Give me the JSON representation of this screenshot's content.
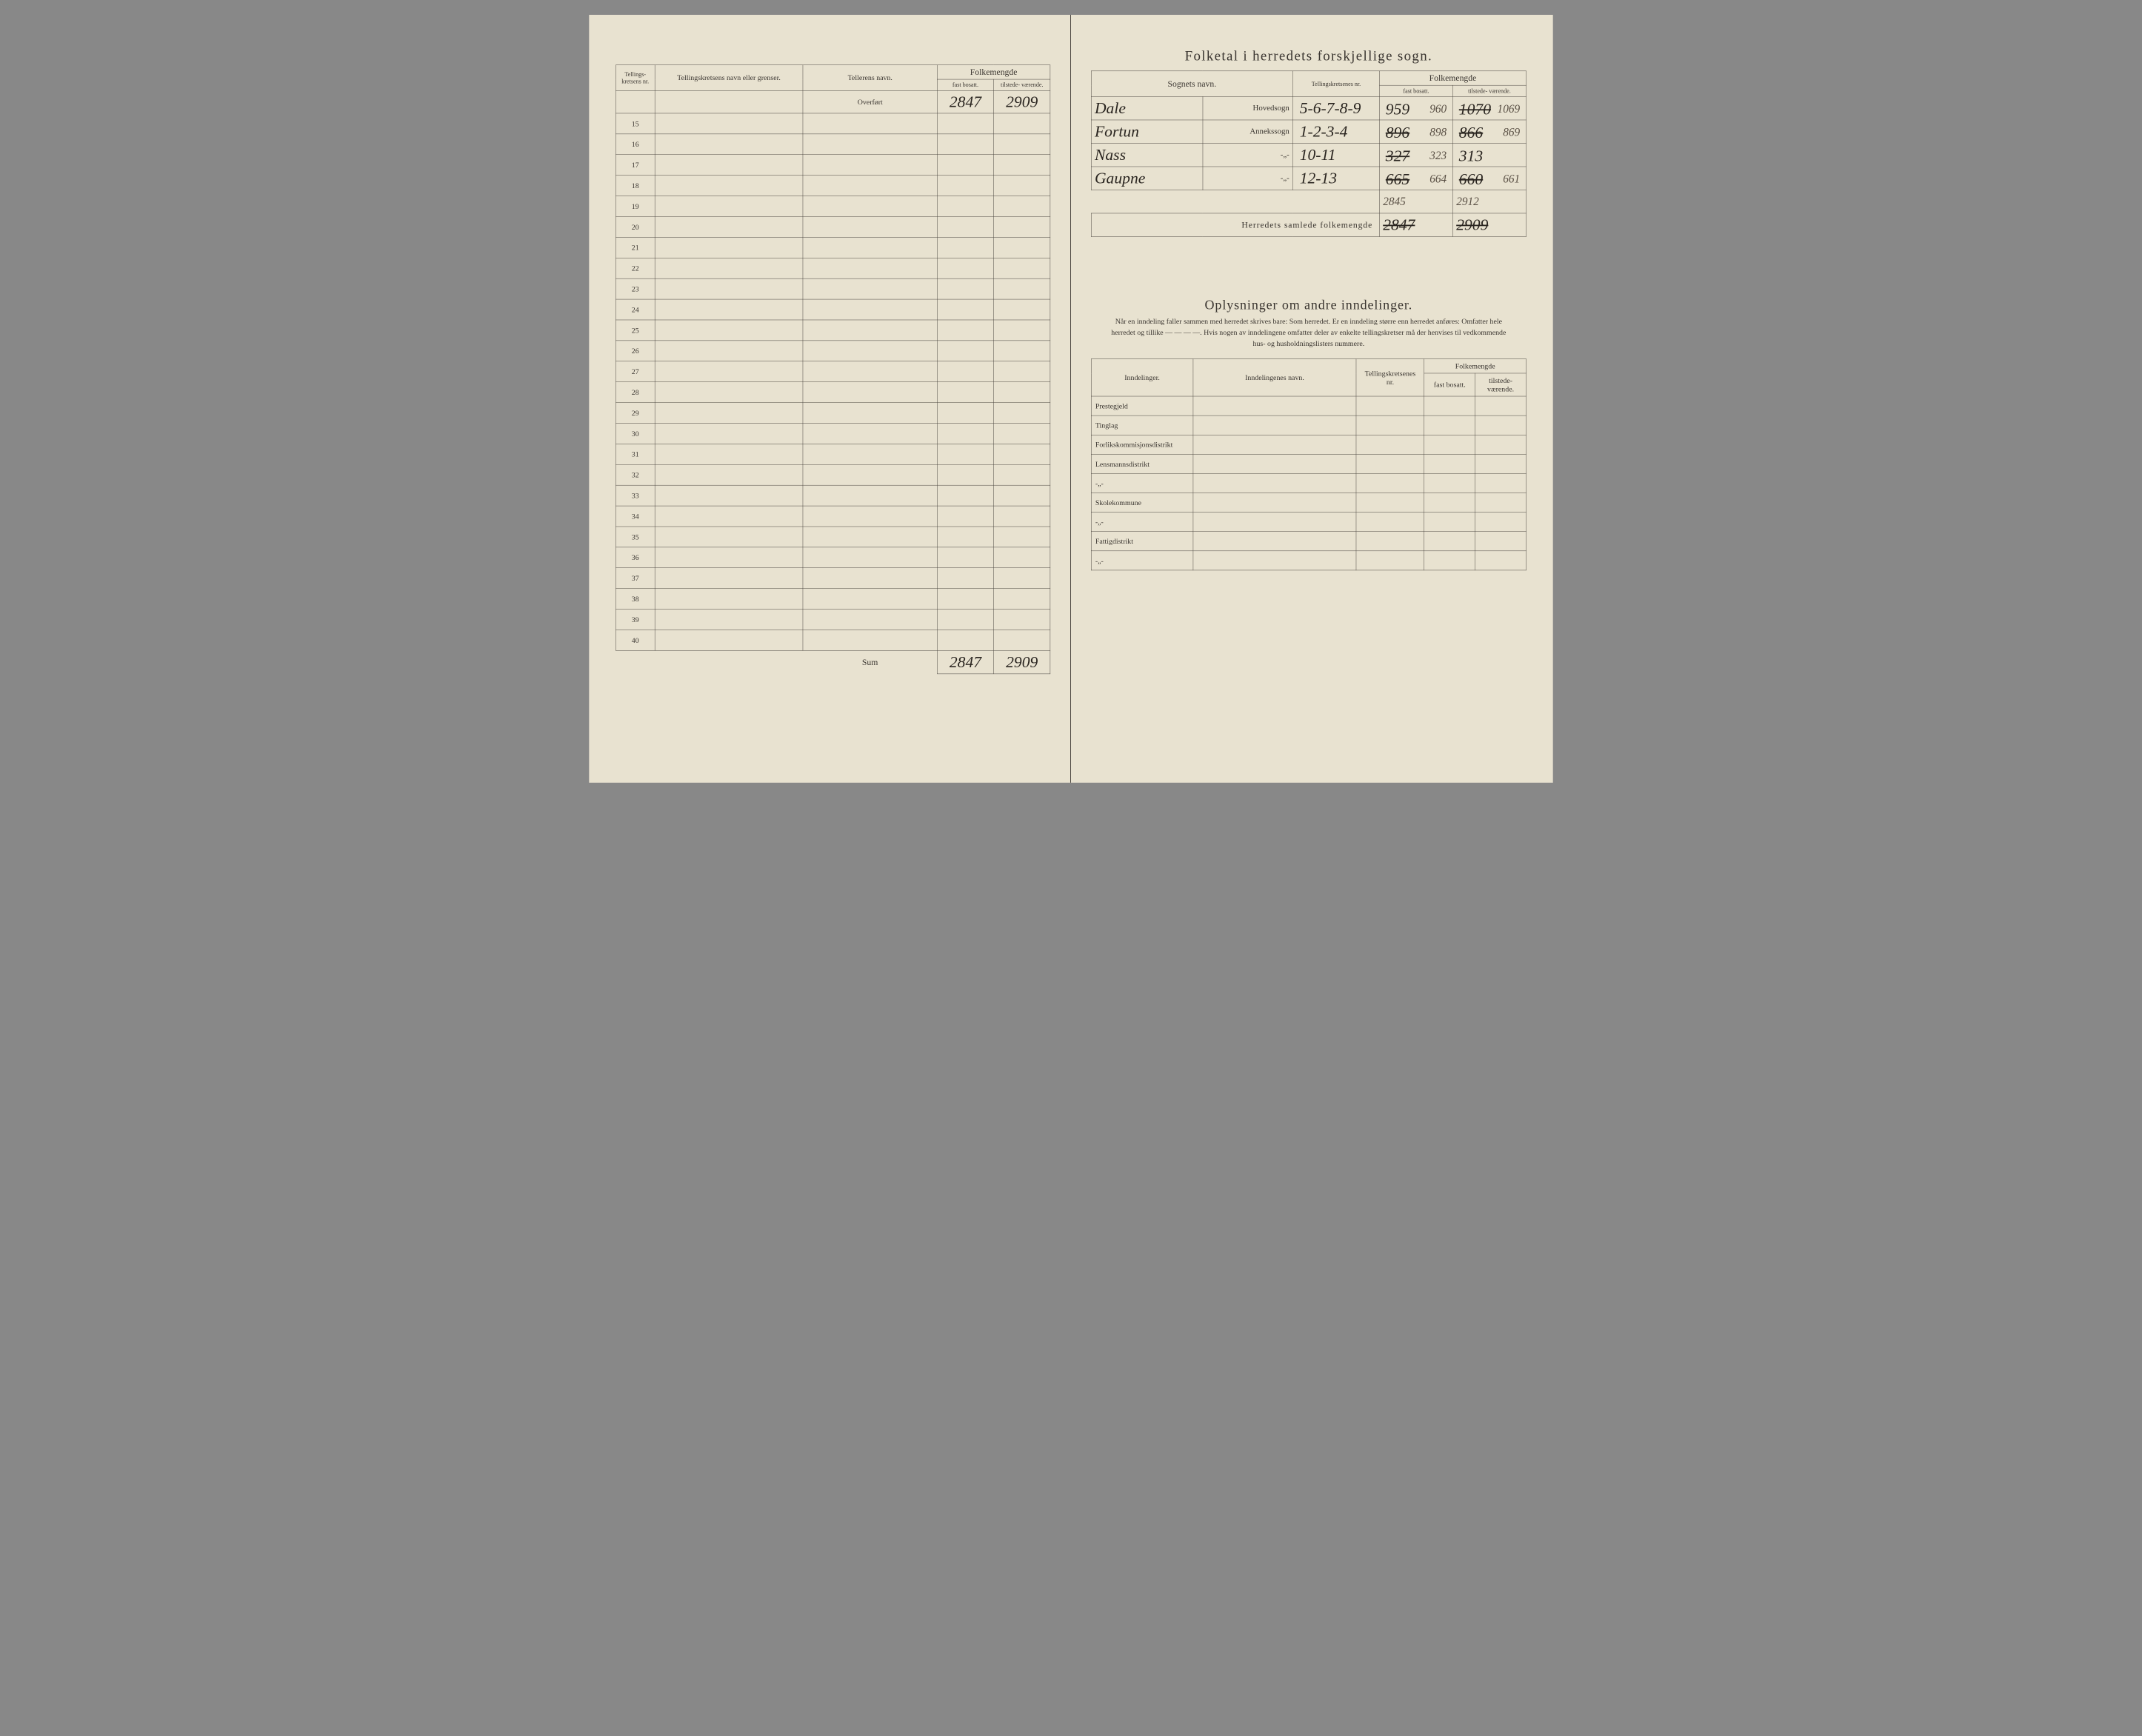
{
  "left": {
    "headers": {
      "nr": "Tellings-\nkretsens\nnr.",
      "name": "Tellingskretsens navn eller grenser.",
      "teller": "Tellerens navn.",
      "folkemengde": "Folkemengde",
      "fast": "fast\nbosatt.",
      "tilstede": "tilstede-\nværende."
    },
    "overfort_label": "Overført",
    "overfort_fast": "2847",
    "overfort_til": "2909",
    "row_numbers": [
      "15",
      "16",
      "17",
      "18",
      "19",
      "20",
      "21",
      "22",
      "23",
      "24",
      "25",
      "26",
      "27",
      "28",
      "29",
      "30",
      "31",
      "32",
      "33",
      "34",
      "35",
      "36",
      "37",
      "38",
      "39",
      "40"
    ],
    "sum_label": "Sum",
    "sum_fast": "2847",
    "sum_til": "2909"
  },
  "right": {
    "title": "Folketal i herredets forskjellige sogn.",
    "headers": {
      "sogn": "Sognets navn.",
      "krets": "Tellingskretsenes\nnr.",
      "folkemengde": "Folkemengde",
      "fast": "fast\nbosatt.",
      "tilstede": "tilstede-\nværende."
    },
    "rows": [
      {
        "name": "Dale",
        "type": "Hovedsogn",
        "krets": "5-6-7-8-9",
        "fast_old": "959",
        "fast_new": "960",
        "til_old": "1070",
        "til_new": "1069",
        "fast_strike": false,
        "til_strike": true
      },
      {
        "name": "Fortun",
        "type": "Annekssogn",
        "krets": "1-2-3-4",
        "fast_old": "896",
        "fast_new": "898",
        "til_old": "866",
        "til_new": "869",
        "fast_strike": true,
        "til_strike": true
      },
      {
        "name": "Nass",
        "type": "-„-",
        "krets": "10-11",
        "fast_old": "327",
        "fast_new": "323",
        "til_old": "313",
        "til_new": "",
        "fast_strike": true,
        "til_strike": false
      },
      {
        "name": "Gaupne",
        "type": "-„-",
        "krets": "12-13",
        "fast_old": "665",
        "fast_new": "664",
        "til_old": "660",
        "til_new": "661",
        "fast_strike": true,
        "til_strike": true
      }
    ],
    "subtotal": {
      "fast": "2845",
      "til": "2912"
    },
    "total_label": "Herredets samlede folkemengde",
    "total": {
      "fast_old": "2847",
      "til_old": "2909",
      "fast_strike": true,
      "til_strike": true
    },
    "section2_title": "Oplysninger om andre inndelinger.",
    "section2_sub": "Når en inndeling faller sammen med herredet skrives bare: Som herredet. Er en inndeling større enn herredet anføres: Omfatter hele herredet og tillike — — — —. Hvis nogen av inndelingene omfatter deler av enkelte tellingskretser må der henvises til vedkommende hus- og husholdningslisters nummere.",
    "inndel_headers": {
      "ind": "Inndelinger.",
      "name": "Inndelingenes navn.",
      "krets": "Tellingskretsenes\nnr.",
      "folkemengde": "Folkemengde",
      "fast": "fast\nbosatt.",
      "tilstede": "tilstede-\nværende."
    },
    "inndel_rows": [
      "Prestegjeld",
      "Tinglag",
      "Forlikskommisjonsdistrikt",
      "Lensmannsdistrikt",
      "-„-",
      "Skolekommune",
      "-„-",
      "Fattigdistrikt",
      "-„-"
    ]
  },
  "colors": {
    "paper": "#e8e2d0",
    "ink": "#3a3530",
    "pencil": "#5a5045"
  }
}
